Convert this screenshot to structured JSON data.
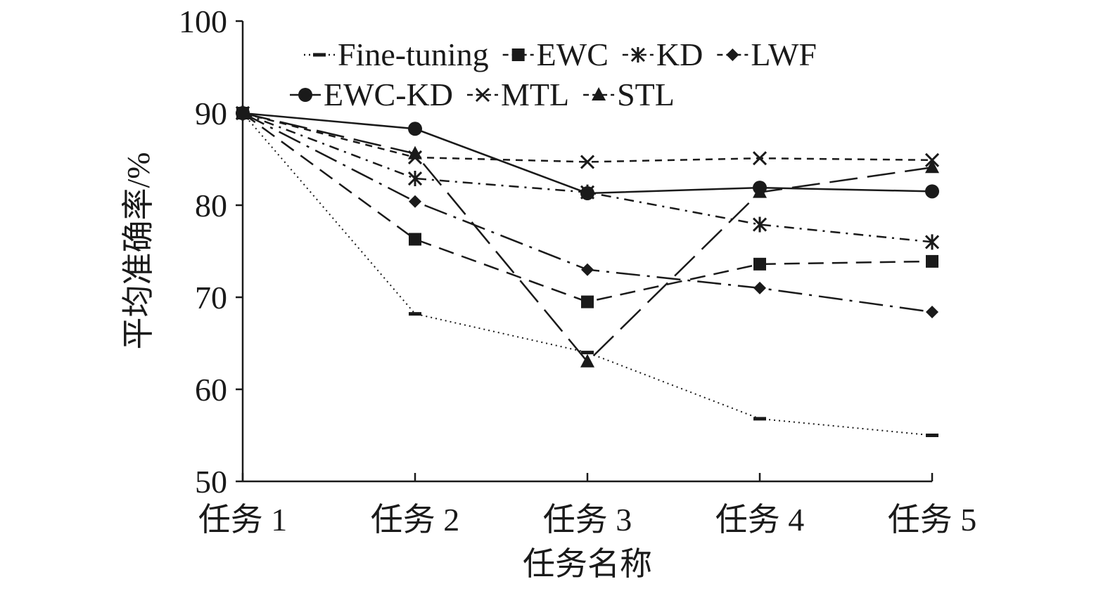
{
  "chart_data": {
    "type": "line",
    "title": "",
    "xlabel": "任务名称",
    "ylabel": "平均准确率/%",
    "categories": [
      "任务 1",
      "任务 2",
      "任务 3",
      "任务 4",
      "任务 5"
    ],
    "ylim": [
      50,
      100
    ],
    "yticks": [
      "50",
      "60",
      "70",
      "80",
      "90",
      "100"
    ],
    "grid": false,
    "legend_position": "top",
    "series": [
      {
        "name": "Fine-tuning",
        "values": [
          90,
          68.2,
          64,
          56.8,
          55
        ],
        "marker": "dash",
        "dash": "dotted"
      },
      {
        "name": "EWC",
        "values": [
          90,
          76.3,
          69.5,
          73.6,
          73.9
        ],
        "marker": "square",
        "dash": "dashed"
      },
      {
        "name": "KD",
        "values": [
          90,
          82.9,
          81.4,
          77.9,
          76
        ],
        "marker": "asterisk",
        "dash": "dash-dot"
      },
      {
        "name": "LWF",
        "values": [
          90,
          80.4,
          73,
          71,
          68.4
        ],
        "marker": "diamond",
        "dash": "long-dash-dot"
      },
      {
        "name": "EWC-KD",
        "values": [
          90,
          88.3,
          81.3,
          81.9,
          81.5
        ],
        "marker": "circle",
        "dash": "solid"
      },
      {
        "name": "MTL",
        "values": [
          90,
          85.2,
          84.7,
          85.1,
          84.9
        ],
        "marker": "x",
        "dash": "short-dash"
      },
      {
        "name": "STL",
        "values": [
          90,
          85.6,
          63,
          81.4,
          84.1
        ],
        "marker": "triangle",
        "dash": "long-dash"
      }
    ]
  }
}
